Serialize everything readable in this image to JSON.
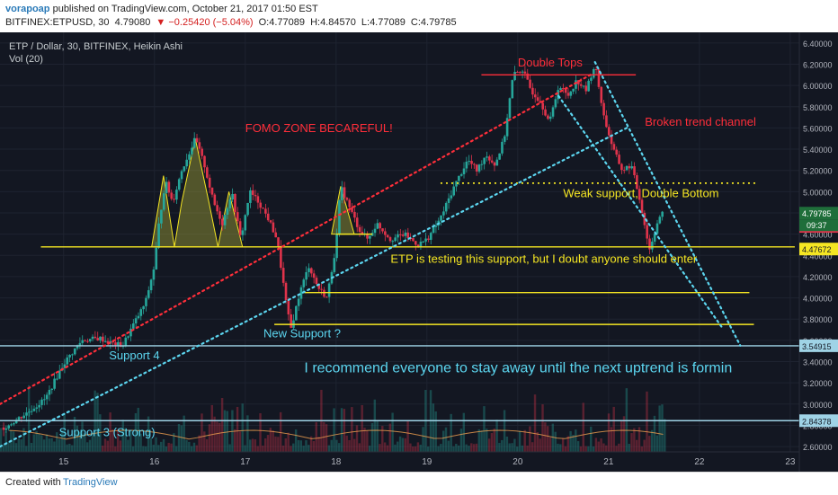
{
  "header": {
    "author": "vorapoap",
    "published": "published on TradingView.com, October 21, 2017 01:50 EST",
    "symbol": "BITFINEX:ETPUSD, 30",
    "last": "4.79080",
    "change": "−0.25420 (−5.04%)",
    "open": "O:4.77089",
    "high": "H:4.84570",
    "low": "L:4.77089",
    "close": "C:4.79785"
  },
  "legend": {
    "title": "ETP / Dollar, 30, BITFINEX, Heikin Ashi",
    "volume": "Vol (20)"
  },
  "footer": {
    "created": "Created with",
    "brand": "TradingView"
  },
  "colors": {
    "background": "#131722",
    "up": "#26a69a",
    "down": "#e0334b",
    "support": "#f5e623",
    "annotation_red": "#ff2e3a",
    "annotation_cyan": "#5cd6f0"
  },
  "chart_data": {
    "type": "candlestick",
    "chart_style": "Heikin Ashi",
    "x_tick_labels": [
      "15",
      "16",
      "17",
      "18",
      "19",
      "20",
      "21",
      "22",
      "23"
    ],
    "y_ticks": [
      "2.60000",
      "2.80000",
      "3.00000",
      "3.20000",
      "3.40000",
      "3.60000",
      "3.80000",
      "4.00000",
      "4.20000",
      "4.40000",
      "4.60000",
      "4.80000",
      "5.00000",
      "5.20000",
      "5.40000",
      "5.60000",
      "5.80000",
      "6.00000",
      "6.20000",
      "6.40000"
    ],
    "ylim": [
      2.55,
      6.5
    ],
    "xlim": [
      14.3,
      23.1
    ],
    "price_labels": [
      {
        "value": 4.79785,
        "text": "4.79785",
        "kind": "last"
      },
      {
        "value": 4.7908,
        "text": "4.79080",
        "kind": "red"
      },
      {
        "value": 4.47672,
        "text": "4.47672",
        "kind": "yellow"
      },
      {
        "value": 3.54915,
        "text": "3.54915",
        "kind": "blue"
      },
      {
        "value": 2.84378,
        "text": "2.84378",
        "kind": "blue"
      }
    ],
    "countdown": "09:37",
    "price_path": [
      [
        14.35,
        2.78
      ],
      [
        14.6,
        2.92
      ],
      [
        14.8,
        3.05
      ],
      [
        15.0,
        3.38
      ],
      [
        15.2,
        3.6
      ],
      [
        15.4,
        3.62
      ],
      [
        15.5,
        3.58
      ],
      [
        15.65,
        3.55
      ],
      [
        15.75,
        3.72
      ],
      [
        15.9,
        3.95
      ],
      [
        16.0,
        4.3
      ],
      [
        16.05,
        4.7
      ],
      [
        16.12,
        5.1
      ],
      [
        16.2,
        4.9
      ],
      [
        16.3,
        5.2
      ],
      [
        16.45,
        5.5
      ],
      [
        16.55,
        5.25
      ],
      [
        16.65,
        4.9
      ],
      [
        16.75,
        4.7
      ],
      [
        16.85,
        5.0
      ],
      [
        16.95,
        4.55
      ],
      [
        17.05,
        5.0
      ],
      [
        17.15,
        4.9
      ],
      [
        17.25,
        4.75
      ],
      [
        17.35,
        4.55
      ],
      [
        17.45,
        3.95
      ],
      [
        17.5,
        3.7
      ],
      [
        17.6,
        4.05
      ],
      [
        17.7,
        4.3
      ],
      [
        17.8,
        4.1
      ],
      [
        17.9,
        4.0
      ],
      [
        18.0,
        4.5
      ],
      [
        18.05,
        5.05
      ],
      [
        18.15,
        4.85
      ],
      [
        18.25,
        4.65
      ],
      [
        18.35,
        4.55
      ],
      [
        18.45,
        4.7
      ],
      [
        18.6,
        4.55
      ],
      [
        18.75,
        4.6
      ],
      [
        18.9,
        4.5
      ],
      [
        19.0,
        4.55
      ],
      [
        19.15,
        4.75
      ],
      [
        19.3,
        5.05
      ],
      [
        19.45,
        5.3
      ],
      [
        19.55,
        5.2
      ],
      [
        19.65,
        5.35
      ],
      [
        19.75,
        5.25
      ],
      [
        19.85,
        5.5
      ],
      [
        19.95,
        6.1
      ],
      [
        20.05,
        6.15
      ],
      [
        20.15,
        5.95
      ],
      [
        20.25,
        5.85
      ],
      [
        20.35,
        5.65
      ],
      [
        20.45,
        6.0
      ],
      [
        20.55,
        5.9
      ],
      [
        20.65,
        6.05
      ],
      [
        20.75,
        5.95
      ],
      [
        20.85,
        6.2
      ],
      [
        20.95,
        5.7
      ],
      [
        21.05,
        5.4
      ],
      [
        21.15,
        5.2
      ],
      [
        21.25,
        5.25
      ],
      [
        21.35,
        4.9
      ],
      [
        21.45,
        4.45
      ],
      [
        21.55,
        4.75
      ],
      [
        21.6,
        4.8
      ]
    ],
    "support_lines": [
      {
        "value": 4.48,
        "x1": 14.75,
        "x2": 23.05,
        "color": "#f5e623",
        "style": "solid"
      },
      {
        "value": 4.05,
        "x1": 17.65,
        "x2": 22.55,
        "color": "#f5e623",
        "style": "solid"
      },
      {
        "value": 3.75,
        "x1": 17.32,
        "x2": 22.6,
        "color": "#f5e623",
        "style": "solid"
      },
      {
        "value": 5.08,
        "x1": 19.15,
        "x2": 22.65,
        "color": "#f5e623",
        "style": "dotted"
      },
      {
        "value": 4.6,
        "x1": 18.0,
        "x2": 18.4,
        "color": "#f5e623",
        "style": "solid"
      },
      {
        "value": 3.549,
        "x1": 14.3,
        "x2": 23.1,
        "color": "#9fd3e6",
        "style": "solid"
      },
      {
        "value": 2.844,
        "x1": 14.3,
        "x2": 23.1,
        "color": "#9fd3e6",
        "style": "solid"
      },
      {
        "value": 6.1,
        "x1": 19.6,
        "x2": 21.3,
        "color": "#ff2e3a",
        "style": "solid"
      }
    ],
    "trend_lines": [
      {
        "x1": 14.3,
        "y1": 3.0,
        "x2": 20.8,
        "y2": 6.1,
        "color": "#ff2e3a"
      },
      {
        "x1": 14.3,
        "y1": 2.6,
        "x2": 21.2,
        "y2": 5.6,
        "color": "#5cd6f0"
      },
      {
        "x1": 20.85,
        "y1": 6.22,
        "x2": 22.45,
        "y2": 3.55,
        "color": "#5cd6f0"
      },
      {
        "x1": 20.45,
        "y1": 5.9,
        "x2": 22.25,
        "y2": 3.72,
        "color": "#5cd6f0"
      }
    ],
    "annotations": [
      {
        "text": "Double Tops",
        "x": 20.0,
        "y": 6.18,
        "color": "#ff2e3a"
      },
      {
        "text": "FOMO ZONE BECAREFUL!",
        "x": 17.0,
        "y": 5.56,
        "color": "#ff2e3a"
      },
      {
        "text": "Broken trend channel",
        "x": 21.4,
        "y": 5.62,
        "color": "#ff2e3a"
      },
      {
        "text": "Weak support, Double Bottom",
        "x": 20.5,
        "y": 4.95,
        "color": "#f5e623"
      },
      {
        "text": "ETP is testing this support, but I doubt anyone should enter",
        "x": 18.6,
        "y": 4.33,
        "color": "#f5e623"
      },
      {
        "text": "New Support  ?",
        "x": 17.2,
        "y": 3.63,
        "color": "#5cd6f0"
      },
      {
        "text": "Support 4",
        "x": 15.5,
        "y": 3.42,
        "color": "#5cd6f0"
      },
      {
        "text": "I recommend everyone to stay away until the next uptrend is formin",
        "x": 17.65,
        "y": 3.3,
        "color": "#5cd6f0"
      },
      {
        "text": "Support 3 (Strong)",
        "x": 14.95,
        "y": 2.7,
        "color": "#5cd6f0"
      }
    ]
  }
}
